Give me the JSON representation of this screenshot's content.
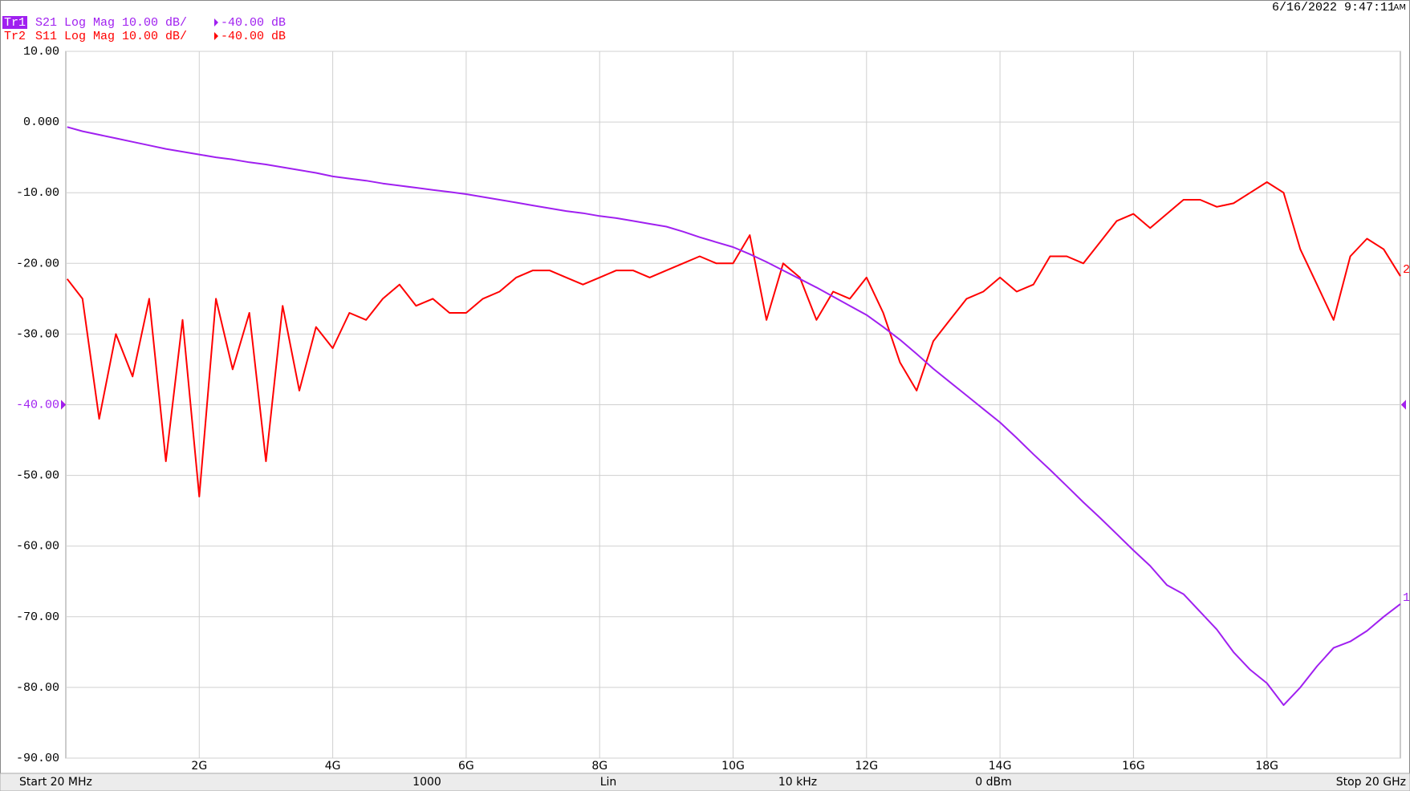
{
  "chart_data": {
    "type": "line",
    "timestamp": "6/16/2022 9:47:11",
    "meridiem": "AM",
    "x": [
      0.02,
      0.25,
      0.5,
      0.75,
      1,
      1.25,
      1.5,
      1.75,
      2,
      2.25,
      2.5,
      2.75,
      3,
      3.25,
      3.5,
      3.75,
      4,
      4.25,
      4.5,
      4.75,
      5,
      5.25,
      5.5,
      5.75,
      6,
      6.25,
      6.5,
      6.75,
      7,
      7.25,
      7.5,
      7.75,
      8,
      8.25,
      8.5,
      8.75,
      9,
      9.25,
      9.5,
      9.75,
      10,
      10.25,
      10.5,
      10.75,
      11,
      11.25,
      11.5,
      11.75,
      12,
      12.25,
      12.5,
      12.75,
      13,
      13.25,
      13.5,
      13.75,
      14,
      14.25,
      14.5,
      14.75,
      15,
      15.25,
      15.5,
      15.75,
      16,
      16.25,
      16.5,
      16.75,
      17,
      17.25,
      17.5,
      17.75,
      18,
      18.25,
      18.5,
      18.75,
      19,
      19.25,
      19.5,
      19.75,
      20
    ],
    "xlim": [
      0,
      20
    ],
    "xticks": [
      {
        "value": 2,
        "label": "2G"
      },
      {
        "value": 4,
        "label": "4G"
      },
      {
        "value": 6,
        "label": "6G"
      },
      {
        "value": 8,
        "label": "8G"
      },
      {
        "value": 10,
        "label": "10G"
      },
      {
        "value": 12,
        "label": "12G"
      },
      {
        "value": 14,
        "label": "14G"
      },
      {
        "value": 16,
        "label": "16G"
      },
      {
        "value": 18,
        "label": "18G"
      }
    ],
    "ylim": [
      -90,
      10
    ],
    "yticks": [
      {
        "value": 10,
        "label": "10.00"
      },
      {
        "value": 0,
        "label": "0.000"
      },
      {
        "value": -10,
        "label": "-10.00"
      },
      {
        "value": -20,
        "label": "-20.00"
      },
      {
        "value": -30,
        "label": "-30.00"
      },
      {
        "value": -40,
        "label": "-40.00"
      },
      {
        "value": -50,
        "label": "-50.00"
      },
      {
        "value": -60,
        "label": "-60.00"
      },
      {
        "value": -70,
        "label": "-70.00"
      },
      {
        "value": -80,
        "label": "-80.00"
      },
      {
        "value": -90,
        "label": "-90.00"
      }
    ],
    "grid": true,
    "series": [
      {
        "trace": "Tr1",
        "name": "S21 Log Mag 10.00 dB/",
        "reference": {
          "value": -40,
          "label": "-40.00 dB"
        },
        "end_label": "1",
        "color": "#a020f0",
        "values": [
          -0.7,
          -1.3,
          -1.8,
          -2.3,
          -2.8,
          -3.3,
          -3.8,
          -4.2,
          -4.6,
          -5.0,
          -5.3,
          -5.7,
          -6.0,
          -6.4,
          -6.8,
          -7.2,
          -7.7,
          -8.0,
          -8.3,
          -8.7,
          -9.0,
          -9.3,
          -9.6,
          -9.9,
          -10.2,
          -10.6,
          -11.0,
          -11.4,
          -11.8,
          -12.2,
          -12.6,
          -12.9,
          -13.3,
          -13.6,
          -14.0,
          -14.4,
          -14.8,
          -15.5,
          -16.3,
          -17.0,
          -17.7,
          -18.7,
          -19.8,
          -21.0,
          -22.2,
          -23.4,
          -24.7,
          -26.0,
          -27.3,
          -29.0,
          -30.8,
          -32.8,
          -34.9,
          -36.8,
          -38.7,
          -40.6,
          -42.5,
          -44.7,
          -47.0,
          -49.2,
          -51.5,
          -53.8,
          -56.0,
          -58.3,
          -60.6,
          -62.8,
          -65.5,
          -66.8,
          -69.3,
          -71.8,
          -75.0,
          -77.5,
          -79.4,
          -82.5,
          -80.0,
          -77.0,
          -74.4,
          -73.5,
          -72.0,
          -70.0,
          -68.2
        ]
      },
      {
        "trace": "Tr2",
        "name": "S11 Log Mag 10.00 dB/",
        "reference": {
          "value": -40,
          "label": "-40.00 dB"
        },
        "end_label": "2",
        "color": "#ff0000",
        "values": [
          -22.2,
          -25,
          -42,
          -30,
          -36,
          -25,
          -48,
          -28,
          -53,
          -25,
          -35,
          -27,
          -48,
          -26,
          -38,
          -29,
          -32,
          -27,
          -28,
          -25,
          -23,
          -26,
          -25,
          -27,
          -27,
          -25,
          -24,
          -22,
          -21,
          -21,
          -22,
          -23,
          -22,
          -21,
          -21,
          -22,
          -21,
          -20,
          -19,
          -20,
          -20,
          -16,
          -28,
          -20,
          -22,
          -28,
          -24,
          -25,
          -22,
          -27,
          -34,
          -38,
          -31,
          -28,
          -25,
          -24,
          -22,
          -24,
          -23,
          -19,
          -19,
          -20,
          -17,
          -14,
          -13,
          -15,
          -13,
          -11,
          -11,
          -12,
          -11.5,
          -10,
          -8.5,
          -10,
          -18,
          -23,
          -28,
          -19,
          -16.5,
          -18,
          -21.8
        ]
      }
    ],
    "status_bar": [
      "Start 20 MHz",
      "1000",
      "Lin",
      "10 kHz",
      "0 dBm",
      "Stop 20 GHz"
    ]
  }
}
